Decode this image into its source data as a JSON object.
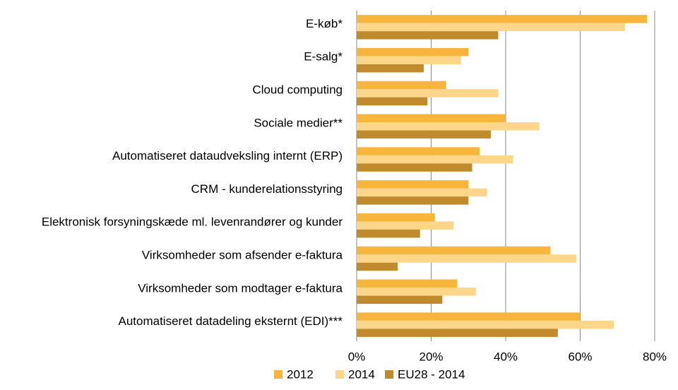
{
  "chart_data": {
    "type": "bar",
    "orientation": "horizontal",
    "categories": [
      "E-køb*",
      "E-salg*",
      "Cloud computing",
      "Sociale medier**",
      "Automatiseret dataudveksling internt (ERP)",
      "CRM - kunderelationsstyring",
      "Elektronisk forsyningskæde ml. levenrandører og kunder",
      "Virksomheder som afsender e-faktura",
      "Virksomheder som modtager e-faktura",
      "Automatiseret datadeling eksternt (EDI)***"
    ],
    "series": [
      {
        "name": "2012",
        "color": "#f7b53b",
        "values": [
          78,
          30,
          24,
          40,
          33,
          30,
          21,
          52,
          27,
          60
        ]
      },
      {
        "name": "2014",
        "color": "#fdd68a",
        "values": [
          72,
          28,
          38,
          49,
          42,
          35,
          26,
          59,
          32,
          69
        ]
      },
      {
        "name": "EU28 - 2014",
        "color": "#c08b2c",
        "values": [
          38,
          18,
          19,
          36,
          31,
          30,
          17,
          11,
          23,
          54
        ]
      }
    ],
    "xlim": [
      0,
      80
    ],
    "xticks": [
      {
        "value": 0,
        "label": "0%"
      },
      {
        "value": 20,
        "label": "20%"
      },
      {
        "value": 40,
        "label": "40%"
      },
      {
        "value": 60,
        "label": "60%"
      },
      {
        "value": 80,
        "label": "80%"
      }
    ],
    "grid": true,
    "legend": "bottom"
  }
}
